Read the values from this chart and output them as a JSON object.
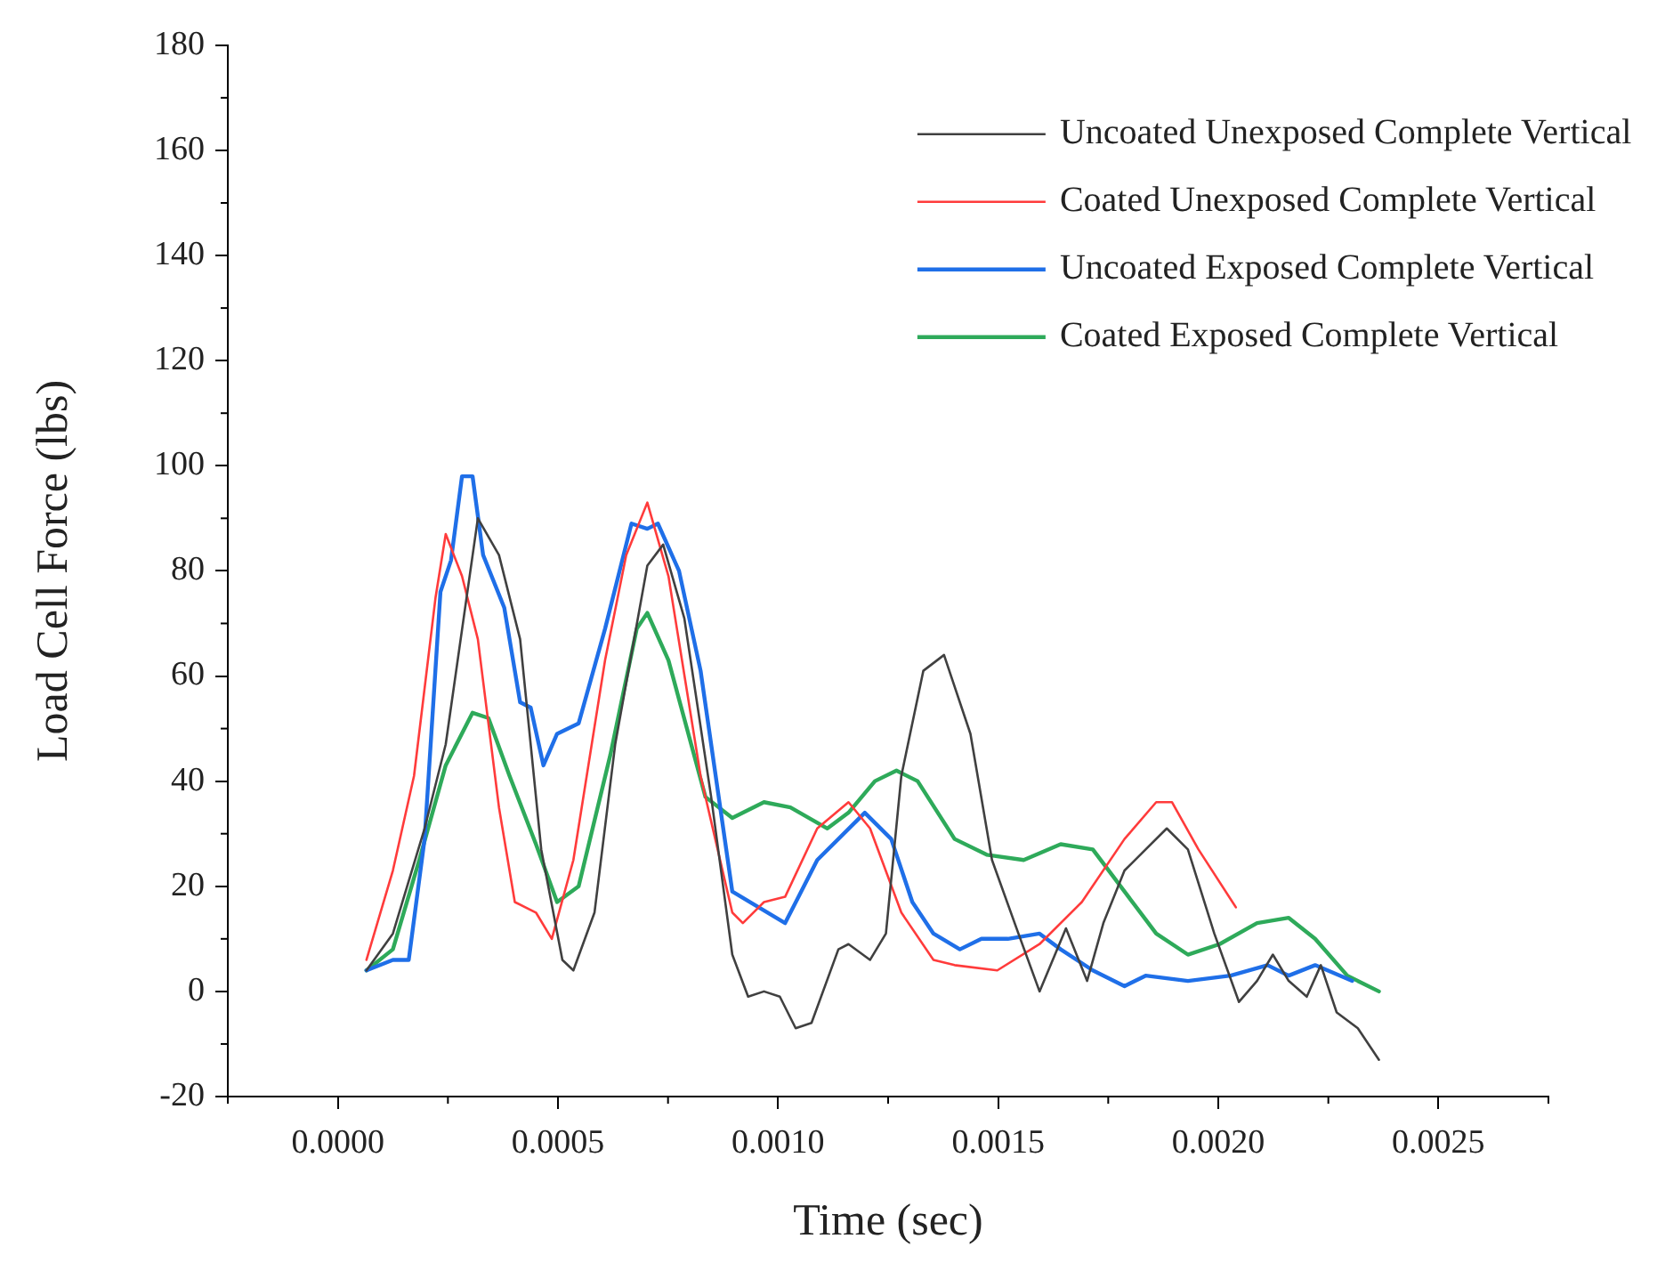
{
  "chart_data": {
    "type": "line",
    "xlabel": "Time (sec)",
    "ylabel": "Load Cell Force (lbs)",
    "xlim": [
      -0.00025,
      0.00275
    ],
    "xticks": [
      {
        "value": 0,
        "label": "0.0000"
      },
      {
        "value": 0.0005,
        "label": "0.0005"
      },
      {
        "value": 0.001,
        "label": "0.0010"
      },
      {
        "value": 0.0015,
        "label": "0.0015"
      },
      {
        "value": 0.002,
        "label": "0.0020"
      },
      {
        "value": 0.0025,
        "label": "0.0025"
      }
    ],
    "ylim": [
      -20,
      180
    ],
    "yticks": [
      -20,
      0,
      20,
      40,
      60,
      80,
      100,
      120,
      140,
      160,
      180
    ],
    "legend": "top right",
    "marker": "none",
    "line_style": "solid",
    "series": [
      {
        "name": "Uncoated Unexposed Complete Vertical",
        "color": "#404040",
        "x": [
          6.5e-05,
          0.000125,
          0.000197,
          0.000245,
          0.000318,
          0.000366,
          0.000414,
          0.000462,
          0.00051,
          0.000535,
          0.000583,
          0.00063,
          0.000703,
          0.000739,
          0.000787,
          0.000848,
          0.000896,
          0.000932,
          0.000968,
          0.001004,
          0.00104,
          0.001076,
          0.001137,
          0.00116,
          0.001209,
          0.001245,
          0.00128,
          0.00133,
          0.001377,
          0.001437,
          0.001486,
          0.001546,
          0.001594,
          0.001654,
          0.001702,
          0.001739,
          0.001787,
          0.001835,
          0.001883,
          0.001931,
          0.001991,
          0.002047,
          0.002088,
          0.002124,
          0.00216,
          0.002201,
          0.002233,
          0.002269,
          0.002317,
          0.002365
        ],
        "values": [
          4,
          11,
          31,
          47,
          90,
          83,
          67,
          27,
          6,
          4,
          15,
          47,
          81,
          85,
          71,
          37,
          7,
          -1,
          0,
          -1,
          -7,
          -6,
          8,
          9,
          6,
          11,
          41,
          61,
          64,
          49,
          25,
          11,
          0,
          12,
          2,
          13,
          23,
          27,
          31,
          27,
          11,
          -2,
          2,
          7,
          2,
          -1,
          5,
          -4,
          -7,
          -13
        ]
      },
      {
        "name": "Coated Unexposed Complete Vertical",
        "color": "#ff3b3b",
        "x": [
          6.5e-05,
          0.000125,
          0.000173,
          0.000222,
          0.000245,
          0.000282,
          0.000318,
          0.000366,
          0.000402,
          0.00045,
          0.000486,
          0.000535,
          0.000607,
          0.000655,
          0.000703,
          0.000751,
          0.000824,
          0.000896,
          0.00092,
          0.000968,
          0.001016,
          0.001089,
          0.00116,
          0.001209,
          0.00128,
          0.001353,
          0.001401,
          0.001498,
          0.001594,
          0.00169,
          0.001787,
          0.001859,
          0.001895,
          0.001955,
          0.00204
        ],
        "values": [
          6,
          23,
          41,
          75,
          87,
          79,
          67,
          35,
          17,
          15,
          10,
          25,
          63,
          83,
          93,
          79,
          41,
          15,
          13,
          17,
          18,
          31,
          36,
          31,
          15,
          6,
          5,
          4,
          9,
          17,
          29,
          36,
          36,
          27,
          16
        ]
      },
      {
        "name": "Uncoated Exposed Complete Vertical",
        "color": "#1f6fe8",
        "x": [
          6.5e-05,
          0.000125,
          0.000161,
          0.000197,
          0.000233,
          0.000257,
          0.000282,
          0.000306,
          0.00033,
          0.000378,
          0.000414,
          0.000438,
          0.000467,
          0.000498,
          0.000547,
          0.000607,
          0.000667,
          0.000703,
          0.000727,
          0.000775,
          0.000824,
          0.000896,
          0.000956,
          0.001016,
          0.001089,
          0.001197,
          0.001257,
          0.001305,
          0.001353,
          0.001413,
          0.001462,
          0.001522,
          0.001594,
          0.001642,
          0.001715,
          0.001787,
          0.001835,
          0.001931,
          0.002028,
          0.002112,
          0.00216,
          0.00222,
          0.002304
        ],
        "values": [
          4,
          6,
          6,
          29,
          76,
          82,
          98,
          98,
          83,
          73,
          55,
          54,
          43,
          49,
          51,
          69,
          89,
          88,
          89,
          80,
          61,
          19,
          16,
          13,
          25,
          34,
          29,
          17,
          11,
          8,
          10,
          10,
          11,
          8,
          4,
          1,
          3,
          2,
          3,
          5,
          3,
          5,
          2
        ]
      },
      {
        "name": "Coated Exposed Complete Vertical",
        "color": "#2eaa5a",
        "x": [
          6.5e-05,
          0.000125,
          0.000185,
          0.000245,
          0.000306,
          0.000342,
          0.00039,
          0.00045,
          0.000498,
          0.000547,
          0.000619,
          0.000679,
          0.000703,
          0.000751,
          0.000835,
          0.000896,
          0.000968,
          0.001028,
          0.001112,
          0.00116,
          0.00122,
          0.001269,
          0.001317,
          0.001401,
          0.001474,
          0.001558,
          0.001642,
          0.001715,
          0.001787,
          0.001859,
          0.001931,
          0.002003,
          0.002088,
          0.00216,
          0.00222,
          0.002293,
          0.002365
        ],
        "values": [
          4,
          8,
          25,
          43,
          53,
          52,
          41,
          28,
          17,
          20,
          45,
          69,
          72,
          63,
          37,
          33,
          36,
          35,
          31,
          34,
          40,
          42,
          40,
          29,
          26,
          25,
          28,
          27,
          19,
          11,
          7,
          9,
          13,
          14,
          10,
          3,
          0
        ]
      }
    ]
  }
}
